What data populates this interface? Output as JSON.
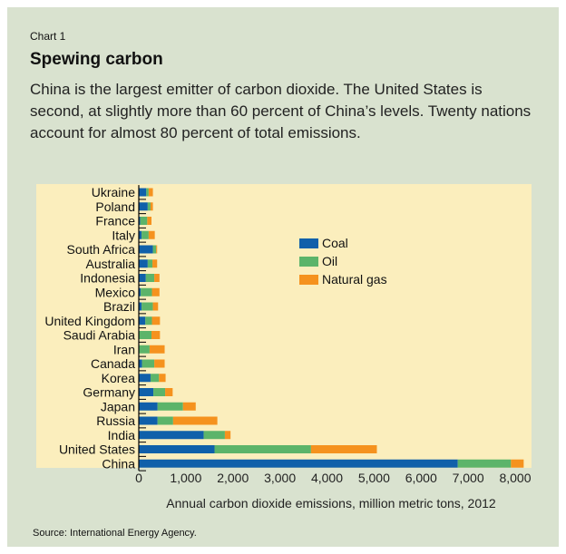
{
  "kicker": "Chart 1",
  "title": "Spewing carbon",
  "subtitle": "China is the largest emitter of carbon dioxide. The United States is second, at slightly more than 60 percent of China’s levels. Twenty nations account for almost 80 percent of total emissions.",
  "source": "Source: International Energy Agency.",
  "colors": {
    "panel": "#d9e2cf",
    "plot_bg": "#fbeebd",
    "coal": "#1060aa",
    "oil": "#5cb46a",
    "gas": "#f5921e"
  },
  "chart_data": {
    "type": "bar",
    "orientation": "horizontal",
    "stacked": true,
    "xlabel": "Annual carbon dioxide emissions, million metric tons, 2012",
    "xlim": [
      0,
      8000
    ],
    "xticks": [
      0,
      1000,
      2000,
      3000,
      4000,
      5000,
      6000,
      7000,
      8000
    ],
    "xtick_labels": [
      "0",
      "1,000",
      "2,000",
      "3,000",
      "4,000",
      "5,000",
      "6,000",
      "7,000",
      "8,000"
    ],
    "legend_position": "right",
    "categories": [
      "Ukraine",
      "Poland",
      "France",
      "Italy",
      "South Africa",
      "Australia",
      "Indonesia",
      "Mexico",
      "Brazil",
      "United Kingdom",
      "Saudi Arabia",
      "Iran",
      "Canada",
      "Korea",
      "Germany",
      "Japan",
      "Russia",
      "India",
      "United States",
      "China"
    ],
    "series": [
      {
        "name": "Coal",
        "values": [
          160,
          190,
          30,
          60,
          300,
          190,
          150,
          40,
          60,
          140,
          0,
          0,
          70,
          250,
          310,
          400,
          400,
          1380,
          1610,
          6780
        ]
      },
      {
        "name": "Oil",
        "values": [
          50,
          60,
          150,
          150,
          70,
          100,
          180,
          240,
          240,
          140,
          270,
          230,
          260,
          180,
          250,
          540,
          330,
          450,
          2050,
          1130
        ]
      },
      {
        "name": "Natural gas",
        "values": [
          90,
          50,
          90,
          130,
          20,
          100,
          110,
          160,
          110,
          170,
          180,
          320,
          220,
          140,
          160,
          270,
          940,
          120,
          1400,
          270
        ]
      }
    ]
  }
}
